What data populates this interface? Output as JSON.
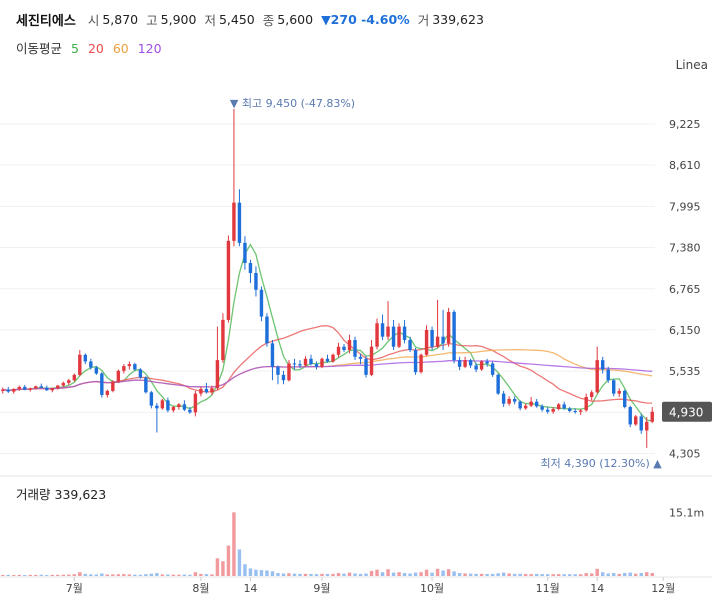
{
  "header": {
    "stock_name": "세진티에스",
    "open_label": "시",
    "open": "5,870",
    "high_label": "고",
    "high": "5,900",
    "low_label": "저",
    "low": "5,450",
    "close_label": "종",
    "close": "5,600",
    "change": "▼270 -4.60%",
    "volume_label": "거",
    "volume": "339,623"
  },
  "ma": {
    "label": "이동평균",
    "periods": [
      "5",
      "20",
      "60",
      "120"
    ],
    "colors": [
      "#3cb043",
      "#e84b4b",
      "#f0a040",
      "#a04ee0"
    ]
  },
  "scale_mode": "Linea",
  "volume_panel": {
    "label": "거래량",
    "value": "339,623",
    "axis_tick": "15.1m"
  },
  "colors": {
    "up": "#e0383e",
    "down": "#1e6fd9",
    "current_badge": "#555555",
    "marker": "#5a7ab0"
  },
  "chart_data": {
    "type": "candlestick",
    "y_ticks": [
      4305,
      4920,
      5535,
      6150,
      6765,
      7380,
      7995,
      8610,
      9225
    ],
    "y_tick_labels": [
      "4,305",
      "4,920",
      "5,535",
      "6,150",
      "6,765",
      "7,380",
      "7,995",
      "8,610",
      "9,225"
    ],
    "ylim": [
      4060,
      10030
    ],
    "x_tick_labels": [
      "7월",
      "8월",
      "14",
      "9월",
      "10월",
      "11월",
      "14",
      "12월"
    ],
    "x_tick_index": [
      13,
      36,
      45,
      58,
      78,
      99,
      108,
      120
    ],
    "current_price": "4,930",
    "current_value": 4930,
    "high_marker": {
      "label": "최고",
      "price": "9,450",
      "pct": "(-47.83%)",
      "index": 42,
      "value": 9450
    },
    "low_marker": {
      "label": "최저",
      "price": "4,390",
      "pct": "(12.30%)",
      "index": 119,
      "value": 4390
    },
    "candles": [
      [
        5240,
        5290,
        5200,
        5260
      ],
      [
        5260,
        5300,
        5210,
        5230
      ],
      [
        5230,
        5280,
        5200,
        5270
      ],
      [
        5270,
        5320,
        5240,
        5300
      ],
      [
        5300,
        5330,
        5250,
        5260
      ],
      [
        5260,
        5290,
        5230,
        5280
      ],
      [
        5280,
        5320,
        5260,
        5310
      ],
      [
        5310,
        5350,
        5280,
        5290
      ],
      [
        5290,
        5320,
        5240,
        5250
      ],
      [
        5250,
        5290,
        5220,
        5280
      ],
      [
        5280,
        5330,
        5260,
        5320
      ],
      [
        5320,
        5380,
        5300,
        5360
      ],
      [
        5360,
        5420,
        5330,
        5400
      ],
      [
        5400,
        5500,
        5380,
        5480
      ],
      [
        5480,
        5850,
        5460,
        5780
      ],
      [
        5780,
        5800,
        5640,
        5680
      ],
      [
        5680,
        5720,
        5560,
        5590
      ],
      [
        5590,
        5610,
        5480,
        5500
      ],
      [
        5500,
        5520,
        5140,
        5180
      ],
      [
        5180,
        5260,
        5140,
        5240
      ],
      [
        5240,
        5400,
        5220,
        5380
      ],
      [
        5380,
        5560,
        5360,
        5540
      ],
      [
        5540,
        5640,
        5500,
        5610
      ],
      [
        5610,
        5680,
        5560,
        5640
      ],
      [
        5640,
        5660,
        5540,
        5560
      ],
      [
        5560,
        5580,
        5420,
        5440
      ],
      [
        5440,
        5460,
        5200,
        5220
      ],
      [
        5220,
        5240,
        4980,
        5020
      ],
      [
        5020,
        5060,
        4620,
        4980
      ],
      [
        4980,
        5120,
        4960,
        5100
      ],
      [
        5100,
        5140,
        4920,
        4950
      ],
      [
        4950,
        5020,
        4920,
        5000
      ],
      [
        5000,
        5060,
        4960,
        5040
      ],
      [
        5040,
        5100,
        4940,
        4960
      ],
      [
        4960,
        5000,
        4900,
        4920
      ],
      [
        4920,
        5240,
        4860,
        5200
      ],
      [
        5200,
        5300,
        5160,
        5270
      ],
      [
        5270,
        5360,
        5200,
        5220
      ],
      [
        5220,
        5320,
        5180,
        5280
      ],
      [
        5280,
        6200,
        5260,
        5700
      ],
      [
        5700,
        6400,
        5660,
        6300
      ],
      [
        6300,
        7560,
        6260,
        7480
      ],
      [
        7480,
        9450,
        7400,
        8050
      ],
      [
        8050,
        8250,
        7400,
        7450
      ],
      [
        7450,
        7550,
        7050,
        7150
      ],
      [
        7150,
        7200,
        6850,
        7000
      ],
      [
        7000,
        7100,
        6650,
        6750
      ],
      [
        6750,
        6800,
        6280,
        6350
      ],
      [
        6350,
        6400,
        5900,
        5950
      ],
      [
        5950,
        6000,
        5400,
        5600
      ],
      [
        5600,
        5620,
        5340,
        5480
      ],
      [
        5480,
        5540,
        5340,
        5400
      ],
      [
        5400,
        5700,
        5380,
        5650
      ],
      [
        5650,
        5720,
        5560,
        5640
      ],
      [
        5640,
        5700,
        5580,
        5620
      ],
      [
        5620,
        5760,
        5600,
        5720
      ],
      [
        5720,
        5780,
        5620,
        5640
      ],
      [
        5640,
        5680,
        5560,
        5600
      ],
      [
        5600,
        5740,
        5580,
        5720
      ],
      [
        5720,
        5780,
        5660,
        5680
      ],
      [
        5680,
        5800,
        5660,
        5780
      ],
      [
        5780,
        5960,
        5740,
        5900
      ],
      [
        5900,
        5940,
        5820,
        5850
      ],
      [
        5850,
        6080,
        5800,
        6000
      ],
      [
        6000,
        6050,
        5700,
        5750
      ],
      [
        5750,
        5800,
        5640,
        5720
      ],
      [
        5720,
        5760,
        5440,
        5480
      ],
      [
        5480,
        6000,
        5460,
        5900
      ],
      [
        5900,
        6320,
        5860,
        6250
      ],
      [
        6250,
        6380,
        6000,
        6050
      ],
      [
        6050,
        6580,
        6000,
        6200
      ],
      [
        6200,
        6300,
        5850,
        5900
      ],
      [
        5900,
        6250,
        5880,
        6200
      ],
      [
        6200,
        6300,
        5950,
        6000
      ],
      [
        6000,
        6050,
        5820,
        5850
      ],
      [
        5850,
        5880,
        5480,
        5520
      ],
      [
        5520,
        5800,
        5500,
        5780
      ],
      [
        5780,
        6220,
        5760,
        6150
      ],
      [
        6150,
        6200,
        5850,
        5900
      ],
      [
        5900,
        6600,
        5880,
        6050
      ],
      [
        6050,
        6450,
        5850,
        5950
      ],
      [
        5950,
        6480,
        5900,
        6420
      ],
      [
        6420,
        6450,
        5650,
        5700
      ],
      [
        5700,
        5750,
        5550,
        5600
      ],
      [
        5600,
        5750,
        5580,
        5700
      ],
      [
        5700,
        5720,
        5580,
        5620
      ],
      [
        5620,
        5660,
        5520,
        5560
      ],
      [
        5560,
        5700,
        5540,
        5680
      ],
      [
        5680,
        5720,
        5600,
        5650
      ],
      [
        5650,
        5680,
        5450,
        5480
      ],
      [
        5480,
        5500,
        5180,
        5200
      ],
      [
        5200,
        5240,
        5000,
        5050
      ],
      [
        5050,
        5160,
        5020,
        5120
      ],
      [
        5120,
        5160,
        5040,
        5080
      ],
      [
        5080,
        5100,
        4950,
        4980
      ],
      [
        4980,
        5050,
        4960,
        5020
      ],
      [
        5020,
        5150,
        5000,
        5080
      ],
      [
        5080,
        5120,
        4990,
        5010
      ],
      [
        5010,
        5040,
        4930,
        4960
      ],
      [
        4960,
        5000,
        4900,
        4930
      ],
      [
        4930,
        5000,
        4900,
        4970
      ],
      [
        4970,
        5060,
        4950,
        5040
      ],
      [
        5040,
        5080,
        4960,
        4980
      ],
      [
        4980,
        5000,
        4920,
        4940
      ],
      [
        4940,
        4980,
        4900,
        4930
      ],
      [
        4930,
        4970,
        4880,
        4950
      ],
      [
        4950,
        5200,
        4930,
        5150
      ],
      [
        5150,
        5250,
        5100,
        5220
      ],
      [
        5220,
        5900,
        5200,
        5700
      ],
      [
        5700,
        5750,
        5500,
        5560
      ],
      [
        5560,
        5600,
        5360,
        5400
      ],
      [
        5400,
        5420,
        5160,
        5200
      ],
      [
        5200,
        5280,
        5150,
        5240
      ],
      [
        5240,
        5260,
        4980,
        5000
      ],
      [
        5000,
        5020,
        4700,
        4740
      ],
      [
        4740,
        4880,
        4720,
        4860
      ],
      [
        4860,
        4900,
        4600,
        4650
      ],
      [
        4650,
        4850,
        4390,
        4780
      ],
      [
        4780,
        5000,
        4760,
        4930
      ]
    ],
    "volume_ylim": [
      0,
      18500000
    ],
    "volume": [
      250000,
      280000,
      230000,
      260000,
      240000,
      270000,
      250000,
      300000,
      220000,
      260000,
      280000,
      310000,
      350000,
      420000,
      900000,
      500000,
      400000,
      350000,
      600000,
      350000,
      380000,
      420000,
      450000,
      380000,
      320000,
      300000,
      450000,
      550000,
      700000,
      380000,
      350000,
      300000,
      320000,
      330000,
      300000,
      900000,
      500000,
      450000,
      400000,
      4200000,
      3500000,
      7200000,
      15100000,
      6300000,
      2800000,
      1800000,
      1500000,
      1400000,
      1300000,
      1100000,
      700000,
      600000,
      650000,
      550000,
      500000,
      520000,
      480000,
      450000,
      520000,
      480000,
      500000,
      700000,
      550000,
      800000,
      600000,
      500000,
      600000,
      1200000,
      1500000,
      900000,
      1600000,
      800000,
      900000,
      700000,
      600000,
      800000,
      900000,
      1500000,
      800000,
      1700000,
      1300000,
      1600000,
      1100000,
      700000,
      600000,
      550000,
      500000,
      520000,
      480000,
      500000,
      650000,
      800000,
      600000,
      500000,
      520000,
      480000,
      450000,
      500000,
      460000,
      430000,
      420000,
      450000,
      440000,
      430000,
      420000,
      410000,
      700000,
      600000,
      1700000,
      900000,
      600000,
      700000,
      500000,
      700000,
      800000,
      550000,
      700000,
      900000,
      700000
    ]
  }
}
